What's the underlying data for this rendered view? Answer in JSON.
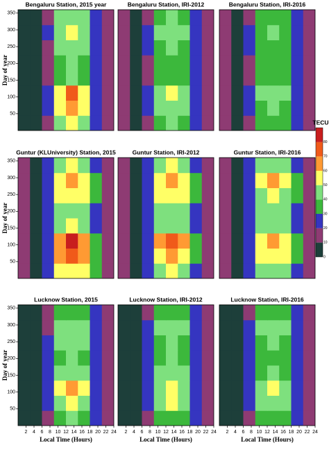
{
  "chart_data": [
    {
      "type": "heatmap",
      "title": "Bengaluru Station, 2015 year",
      "y_label": "Day of year",
      "xlim": [
        0,
        24
      ],
      "ylim": [
        0,
        360
      ],
      "yticks": [
        50,
        100,
        150,
        200,
        250,
        300,
        350
      ],
      "x": [
        1.5,
        4.5,
        7.5,
        10.5,
        13.5,
        16.5,
        19.5,
        22.5
      ],
      "y": [
        22.5,
        67.5,
        112.5,
        157.5,
        202.5,
        247.5,
        292.5,
        337.5
      ],
      "z": [
        [
          5,
          5,
          15,
          45,
          55,
          45,
          25,
          10
        ],
        [
          5,
          5,
          20,
          55,
          65,
          55,
          25,
          10
        ],
        [
          5,
          5,
          20,
          55,
          70,
          55,
          25,
          10
        ],
        [
          5,
          5,
          15,
          35,
          40,
          35,
          20,
          10
        ],
        [
          5,
          5,
          15,
          35,
          40,
          35,
          20,
          10
        ],
        [
          5,
          5,
          15,
          40,
          45,
          40,
          20,
          10
        ],
        [
          5,
          5,
          20,
          45,
          55,
          45,
          25,
          10
        ],
        [
          5,
          5,
          15,
          40,
          45,
          40,
          20,
          10
        ]
      ]
    },
    {
      "type": "heatmap",
      "title": "Bengaluru Station, IRI-2012",
      "xlim": [
        0,
        24
      ],
      "ylim": [
        0,
        360
      ],
      "x": [
        1.5,
        4.5,
        7.5,
        10.5,
        13.5,
        16.5,
        19.5,
        22.5
      ],
      "y": [
        22.5,
        67.5,
        112.5,
        157.5,
        202.5,
        247.5,
        292.5,
        337.5
      ],
      "z": [
        [
          15,
          5,
          15,
          35,
          40,
          35,
          25,
          15
        ],
        [
          15,
          5,
          20,
          40,
          45,
          40,
          25,
          15
        ],
        [
          15,
          5,
          20,
          40,
          50,
          40,
          25,
          15
        ],
        [
          15,
          5,
          15,
          30,
          35,
          30,
          20,
          15
        ],
        [
          15,
          5,
          15,
          30,
          35,
          30,
          20,
          15
        ],
        [
          15,
          5,
          20,
          35,
          40,
          35,
          20,
          15
        ],
        [
          15,
          5,
          20,
          40,
          45,
          40,
          25,
          15
        ],
        [
          15,
          5,
          15,
          35,
          40,
          35,
          20,
          15
        ]
      ]
    },
    {
      "type": "heatmap",
      "title": "Bengaluru Station, IRI-2016",
      "xlim": [
        0,
        24
      ],
      "ylim": [
        0,
        360
      ],
      "x": [
        1.5,
        4.5,
        7.5,
        10.5,
        13.5,
        16.5,
        19.5,
        22.5
      ],
      "y": [
        22.5,
        67.5,
        112.5,
        157.5,
        202.5,
        247.5,
        292.5,
        337.5
      ],
      "z": [
        [
          15,
          5,
          15,
          30,
          35,
          30,
          20,
          15
        ],
        [
          15,
          5,
          20,
          35,
          40,
          35,
          25,
          15
        ],
        [
          15,
          5,
          20,
          40,
          45,
          40,
          25,
          15
        ],
        [
          15,
          5,
          15,
          30,
          35,
          30,
          20,
          15
        ],
        [
          15,
          5,
          15,
          30,
          30,
          30,
          20,
          15
        ],
        [
          15,
          5,
          20,
          35,
          35,
          35,
          20,
          15
        ],
        [
          15,
          5,
          20,
          35,
          40,
          35,
          25,
          15
        ],
        [
          15,
          5,
          15,
          30,
          35,
          30,
          20,
          15
        ]
      ]
    },
    {
      "type": "heatmap",
      "title": "Guntur (KLUniversity) Station, 2015",
      "y_label": "Day of year",
      "xlim": [
        0,
        24
      ],
      "ylim": [
        0,
        360
      ],
      "yticks": [
        50,
        100,
        150,
        200,
        250,
        300,
        350
      ],
      "x": [
        1.5,
        4.5,
        7.5,
        10.5,
        13.5,
        16.5,
        19.5,
        22.5
      ],
      "y": [
        22.5,
        67.5,
        112.5,
        157.5,
        202.5,
        247.5,
        292.5,
        337.5
      ],
      "z": [
        [
          10,
          5,
          20,
          50,
          55,
          50,
          30,
          15
        ],
        [
          10,
          5,
          25,
          60,
          70,
          60,
          30,
          15
        ],
        [
          10,
          5,
          25,
          65,
          80,
          65,
          35,
          15
        ],
        [
          10,
          5,
          20,
          45,
          50,
          45,
          25,
          15
        ],
        [
          10,
          5,
          20,
          40,
          45,
          40,
          25,
          15
        ],
        [
          10,
          5,
          25,
          50,
          55,
          50,
          30,
          15
        ],
        [
          10,
          5,
          25,
          55,
          60,
          55,
          30,
          15
        ],
        [
          10,
          5,
          20,
          45,
          50,
          45,
          25,
          15
        ]
      ]
    },
    {
      "type": "heatmap",
      "title": "Guntur Station, IRI-2012",
      "xlim": [
        0,
        24
      ],
      "ylim": [
        0,
        360
      ],
      "x": [
        1.5,
        4.5,
        7.5,
        10.5,
        13.5,
        16.5,
        19.5,
        22.5
      ],
      "y": [
        22.5,
        67.5,
        112.5,
        157.5,
        202.5,
        247.5,
        292.5,
        337.5
      ],
      "z": [
        [
          15,
          5,
          20,
          45,
          50,
          45,
          25,
          15
        ],
        [
          15,
          5,
          25,
          55,
          60,
          55,
          30,
          15
        ],
        [
          15,
          5,
          25,
          60,
          70,
          60,
          30,
          15
        ],
        [
          15,
          5,
          20,
          40,
          45,
          40,
          25,
          15
        ],
        [
          15,
          5,
          20,
          40,
          45,
          40,
          25,
          15
        ],
        [
          15,
          5,
          25,
          50,
          55,
          50,
          30,
          15
        ],
        [
          15,
          5,
          25,
          55,
          65,
          55,
          30,
          15
        ],
        [
          15,
          5,
          20,
          45,
          50,
          45,
          25,
          15
        ]
      ]
    },
    {
      "type": "heatmap",
      "title": "Guntur Station, IRI-2016",
      "xlim": [
        0,
        24
      ],
      "ylim": [
        0,
        360
      ],
      "x": [
        1.5,
        4.5,
        7.5,
        10.5,
        13.5,
        16.5,
        19.5,
        22.5
      ],
      "y": [
        22.5,
        67.5,
        112.5,
        157.5,
        202.5,
        247.5,
        292.5,
        337.5
      ],
      "z": [
        [
          15,
          5,
          20,
          40,
          45,
          40,
          25,
          15
        ],
        [
          15,
          5,
          25,
          50,
          55,
          50,
          30,
          15
        ],
        [
          15,
          5,
          25,
          55,
          65,
          55,
          30,
          15
        ],
        [
          15,
          5,
          20,
          40,
          45,
          40,
          25,
          15
        ],
        [
          15,
          5,
          20,
          40,
          40,
          40,
          25,
          15
        ],
        [
          15,
          5,
          25,
          45,
          50,
          45,
          30,
          15
        ],
        [
          15,
          5,
          25,
          50,
          60,
          50,
          30,
          15
        ],
        [
          15,
          5,
          20,
          40,
          45,
          40,
          25,
          15
        ]
      ]
    },
    {
      "type": "heatmap",
      "title": "Lucknow Station, 2015",
      "y_label": "Day of year",
      "x_label": "Local Time (Hours)",
      "xlim": [
        0,
        24
      ],
      "ylim": [
        0,
        360
      ],
      "yticks": [
        50,
        100,
        150,
        200,
        250,
        300,
        350
      ],
      "xticks": [
        2,
        4,
        6,
        8,
        10,
        12,
        14,
        16,
        18,
        20,
        22,
        24
      ],
      "x": [
        1.5,
        4.5,
        7.5,
        10.5,
        13.5,
        16.5,
        19.5,
        22.5
      ],
      "y": [
        22.5,
        67.5,
        112.5,
        157.5,
        202.5,
        247.5,
        292.5,
        337.5
      ],
      "z": [
        [
          5,
          5,
          15,
          35,
          40,
          35,
          20,
          10
        ],
        [
          5,
          5,
          20,
          45,
          55,
          45,
          25,
          10
        ],
        [
          5,
          5,
          20,
          50,
          65,
          50,
          25,
          10
        ],
        [
          5,
          5,
          20,
          40,
          45,
          40,
          25,
          10
        ],
        [
          5,
          5,
          20,
          35,
          40,
          35,
          20,
          10
        ],
        [
          5,
          5,
          20,
          40,
          45,
          40,
          25,
          10
        ],
        [
          5,
          5,
          15,
          40,
          45,
          40,
          20,
          10
        ],
        [
          5,
          5,
          15,
          30,
          35,
          30,
          20,
          10
        ]
      ]
    },
    {
      "type": "heatmap",
      "title": "Lucknow Station, IRI-2012",
      "x_label": "Local Time (Hours)",
      "xlim": [
        0,
        24
      ],
      "ylim": [
        0,
        360
      ],
      "xticks": [
        2,
        4,
        6,
        8,
        10,
        12,
        14,
        16,
        18,
        20,
        22,
        24
      ],
      "x": [
        1.5,
        4.5,
        7.5,
        10.5,
        13.5,
        16.5,
        19.5,
        22.5
      ],
      "y": [
        22.5,
        67.5,
        112.5,
        157.5,
        202.5,
        247.5,
        292.5,
        337.5
      ],
      "z": [
        [
          5,
          5,
          15,
          30,
          35,
          30,
          20,
          10
        ],
        [
          5,
          5,
          20,
          40,
          50,
          40,
          25,
          15
        ],
        [
          5,
          5,
          20,
          45,
          55,
          45,
          25,
          15
        ],
        [
          5,
          5,
          20,
          40,
          45,
          40,
          25,
          15
        ],
        [
          5,
          5,
          20,
          35,
          40,
          35,
          25,
          15
        ],
        [
          5,
          5,
          20,
          35,
          40,
          35,
          25,
          15
        ],
        [
          5,
          5,
          20,
          40,
          40,
          40,
          25,
          15
        ],
        [
          5,
          5,
          15,
          30,
          35,
          30,
          20,
          10
        ]
      ]
    },
    {
      "type": "heatmap",
      "title": "Lucknow Station, IRI-2016",
      "x_label": "Local Time (Hours)",
      "xlim": [
        0,
        24
      ],
      "ylim": [
        0,
        360
      ],
      "xticks": [
        2,
        4,
        6,
        8,
        10,
        12,
        14,
        16,
        18,
        20,
        22,
        24
      ],
      "x": [
        1.5,
        4.5,
        7.5,
        10.5,
        13.5,
        16.5,
        19.5,
        22.5
      ],
      "y": [
        22.5,
        67.5,
        112.5,
        157.5,
        202.5,
        247.5,
        292.5,
        337.5
      ],
      "z": [
        [
          5,
          5,
          15,
          30,
          35,
          30,
          20,
          10
        ],
        [
          5,
          5,
          20,
          40,
          45,
          40,
          25,
          15
        ],
        [
          5,
          5,
          20,
          45,
          50,
          45,
          25,
          15
        ],
        [
          5,
          5,
          20,
          35,
          40,
          35,
          25,
          15
        ],
        [
          5,
          5,
          20,
          35,
          35,
          35,
          25,
          15
        ],
        [
          5,
          5,
          20,
          35,
          40,
          35,
          25,
          15
        ],
        [
          5,
          5,
          20,
          40,
          40,
          40,
          25,
          15
        ],
        [
          5,
          5,
          15,
          30,
          35,
          30,
          20,
          10
        ]
      ]
    }
  ],
  "colorbar": {
    "title": "TECU",
    "levels": [
      0,
      10,
      20,
      30,
      40,
      50,
      60,
      70,
      80
    ],
    "colors": [
      "#1d3f3a",
      "#8e3b73",
      "#3535c0",
      "#3cb83c",
      "#7ee07e",
      "#ffff66",
      "#ff9a33",
      "#f05a1a",
      "#c81e1e"
    ]
  }
}
